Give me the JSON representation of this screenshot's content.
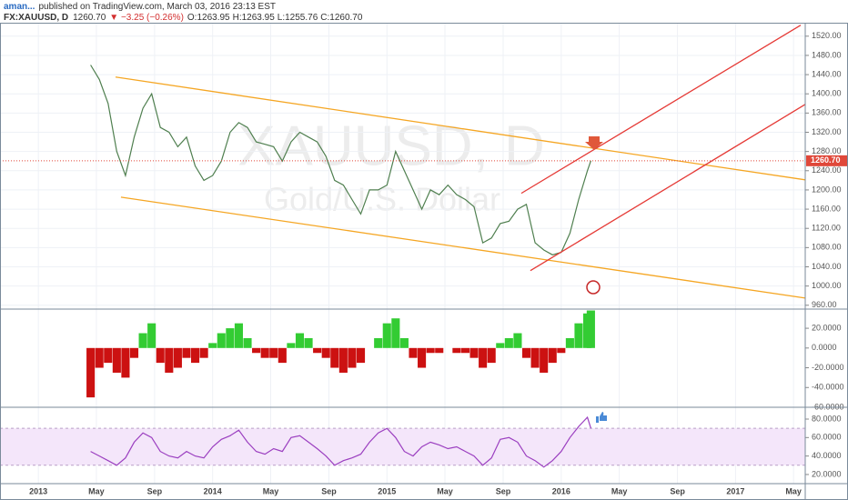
{
  "header": {
    "author": "aman...",
    "published": "published on TradingView.com, March 03, 2016 23:13 EST",
    "symbol": "FX:XAUUSD, D",
    "price": "1260.70",
    "change": "▼ −3.25 (−0.26%)",
    "open": "O:1263.95",
    "high": "H:1263.95",
    "low": "L:1255.76",
    "close": "C:1260.70"
  },
  "watermark": {
    "symbol": "XAUUSD, D",
    "name": "Gold/U.S. Dollar"
  },
  "chart_data": [
    {
      "type": "line",
      "color": "#4f7f4f",
      "x": [
        2013.3,
        2013.35,
        2013.4,
        2013.45,
        2013.5,
        2013.55,
        2013.6,
        2013.65,
        2013.7,
        2013.75,
        2013.8,
        2013.85,
        2013.9,
        2013.95,
        2014.0,
        2014.05,
        2014.1,
        2014.15,
        2014.2,
        2014.25,
        2014.3,
        2014.35,
        2014.4,
        2014.45,
        2014.5,
        2014.55,
        2014.6,
        2014.65,
        2014.7,
        2014.75,
        2014.8,
        2014.85,
        2014.9,
        2014.95,
        2015.0,
        2015.05,
        2015.1,
        2015.15,
        2015.2,
        2015.25,
        2015.3,
        2015.35,
        2015.4,
        2015.45,
        2015.5,
        2015.55,
        2015.6,
        2015.65,
        2015.7,
        2015.75,
        2015.8,
        2015.85,
        2015.9,
        2015.95,
        2016.0,
        2016.05,
        2016.1,
        2016.15,
        2016.17
      ],
      "values": [
        1460,
        1430,
        1380,
        1280,
        1230,
        1310,
        1370,
        1400,
        1330,
        1320,
        1290,
        1310,
        1250,
        1220,
        1230,
        1260,
        1320,
        1340,
        1330,
        1300,
        1295,
        1290,
        1260,
        1300,
        1320,
        1310,
        1300,
        1270,
        1220,
        1210,
        1180,
        1150,
        1200,
        1200,
        1210,
        1280,
        1240,
        1200,
        1160,
        1200,
        1190,
        1210,
        1190,
        1180,
        1165,
        1090,
        1100,
        1130,
        1135,
        1160,
        1170,
        1090,
        1075,
        1065,
        1070,
        1110,
        1180,
        1240,
        1260.7
      ],
      "xlim": [
        2012.78,
        2017.4
      ],
      "ylim": [
        952,
        1548
      ],
      "yticks": [
        {
          "value": 960,
          "label": "960.00"
        },
        {
          "value": 1000,
          "label": "1000.00"
        },
        {
          "value": 1040,
          "label": "1040.00"
        },
        {
          "value": 1080,
          "label": "1080.00"
        },
        {
          "value": 1120,
          "label": "1120.00"
        },
        {
          "value": 1160,
          "label": "1160.00"
        },
        {
          "value": 1200,
          "label": "1200.00"
        },
        {
          "value": 1240,
          "label": "1240.00"
        },
        {
          "value": 1280,
          "label": "1280.00"
        },
        {
          "value": 1320,
          "label": "1320.00"
        },
        {
          "value": 1360,
          "label": "1360.00"
        },
        {
          "value": 1400,
          "label": "1400.00"
        },
        {
          "value": 1440,
          "label": "1440.00"
        },
        {
          "value": 1480,
          "label": "1480.00"
        },
        {
          "value": 1520,
          "label": "1520.00"
        }
      ],
      "current_price": {
        "value": 1260.7,
        "label": "1260.70",
        "color": "#e0483a"
      },
      "trendlines": [
        {
          "color": "#f5a623",
          "x": [
            2013.443,
            2017.4
          ],
          "y": [
            1435,
            1221
          ]
        },
        {
          "color": "#f5a623",
          "x": [
            2013.474,
            2017.4
          ],
          "y": [
            1185,
            975
          ]
        },
        {
          "color": "#e53935",
          "x": [
            2015.771,
            2017.374
          ],
          "y": [
            1193,
            1543
          ]
        },
        {
          "color": "#e53935",
          "x": [
            2015.823,
            2017.4
          ],
          "y": [
            1032,
            1378
          ]
        }
      ],
      "grid": true
    },
    {
      "type": "bar",
      "up_color": "#33cc33",
      "down_color": "#cc1111",
      "x": [
        2013.3,
        2013.35,
        2013.4,
        2013.45,
        2013.5,
        2013.55,
        2013.6,
        2013.65,
        2013.7,
        2013.75,
        2013.8,
        2013.85,
        2013.9,
        2013.95,
        2014.0,
        2014.05,
        2014.1,
        2014.15,
        2014.2,
        2014.25,
        2014.3,
        2014.35,
        2014.4,
        2014.45,
        2014.5,
        2014.55,
        2014.6,
        2014.65,
        2014.7,
        2014.75,
        2014.8,
        2014.85,
        2014.9,
        2014.95,
        2015.0,
        2015.05,
        2015.1,
        2015.15,
        2015.2,
        2015.25,
        2015.3,
        2015.35,
        2015.4,
        2015.45,
        2015.5,
        2015.55,
        2015.6,
        2015.65,
        2015.7,
        2015.75,
        2015.8,
        2015.85,
        2015.9,
        2015.95,
        2016.0,
        2016.05,
        2016.1,
        2016.15,
        2016.17
      ],
      "values": [
        -50,
        -20,
        -15,
        -25,
        -30,
        -10,
        15,
        25,
        -15,
        -25,
        -20,
        -10,
        -15,
        -10,
        5,
        15,
        20,
        25,
        10,
        -5,
        -10,
        -10,
        -15,
        5,
        15,
        10,
        -5,
        -10,
        -20,
        -25,
        -20,
        -15,
        0,
        10,
        25,
        30,
        10,
        -10,
        -20,
        -5,
        -5,
        0,
        -5,
        -5,
        -10,
        -20,
        -15,
        5,
        10,
        15,
        -10,
        -20,
        -25,
        -15,
        -5,
        10,
        25,
        35,
        38
      ],
      "xlim": [
        2012.78,
        2017.4
      ],
      "ylim": [
        -60,
        39.4
      ],
      "yticks": [
        {
          "value": 20,
          "label": "20.0000"
        },
        {
          "value": 0,
          "label": "0.0000"
        },
        {
          "value": -20,
          "label": "-20.0000"
        },
        {
          "value": -40,
          "label": "-40.0000"
        },
        {
          "value": -60,
          "label": "-60.0000"
        }
      ]
    },
    {
      "type": "line",
      "color": "#9b3fc0",
      "x": [
        2013.3,
        2013.35,
        2013.4,
        2013.45,
        2013.5,
        2013.55,
        2013.6,
        2013.65,
        2013.7,
        2013.75,
        2013.8,
        2013.85,
        2013.9,
        2013.95,
        2014.0,
        2014.05,
        2014.1,
        2014.15,
        2014.2,
        2014.25,
        2014.3,
        2014.35,
        2014.4,
        2014.45,
        2014.5,
        2014.55,
        2014.6,
        2014.65,
        2014.7,
        2014.75,
        2014.8,
        2014.85,
        2014.9,
        2014.95,
        2015.0,
        2015.05,
        2015.1,
        2015.15,
        2015.2,
        2015.25,
        2015.3,
        2015.35,
        2015.4,
        2015.45,
        2015.5,
        2015.55,
        2015.6,
        2015.65,
        2015.7,
        2015.75,
        2015.8,
        2015.85,
        2015.9,
        2015.95,
        2016.0,
        2016.05,
        2016.1,
        2016.15,
        2016.17
      ],
      "values": [
        45,
        40,
        35,
        30,
        38,
        55,
        65,
        60,
        45,
        40,
        38,
        45,
        40,
        38,
        50,
        58,
        62,
        68,
        55,
        45,
        42,
        48,
        45,
        60,
        62,
        55,
        48,
        40,
        30,
        35,
        38,
        42,
        55,
        65,
        70,
        60,
        45,
        40,
        50,
        55,
        52,
        48,
        50,
        45,
        40,
        30,
        38,
        58,
        60,
        55,
        40,
        35,
        28,
        35,
        45,
        60,
        72,
        82,
        70
      ],
      "xlim": [
        2012.78,
        2017.4
      ],
      "ylim": [
        10.1,
        92.8
      ],
      "yticks": [
        {
          "value": 80,
          "label": "80.0000"
        },
        {
          "value": 60,
          "label": "60.0000"
        },
        {
          "value": 40,
          "label": "40.0000"
        },
        {
          "value": 20,
          "label": "20.0000"
        }
      ],
      "band": [
        30,
        70
      ],
      "band_color": "#f4e6fa",
      "xticks": [
        {
          "value": 2013,
          "label": "2013"
        },
        {
          "value": 2013.333,
          "label": "May"
        },
        {
          "value": 2013.667,
          "label": "Sep"
        },
        {
          "value": 2014,
          "label": "2014"
        },
        {
          "value": 2014.333,
          "label": "May"
        },
        {
          "value": 2014.667,
          "label": "Sep"
        },
        {
          "value": 2015,
          "label": "2015"
        },
        {
          "value": 2015.333,
          "label": "May"
        },
        {
          "value": 2015.667,
          "label": "Sep"
        },
        {
          "value": 2016,
          "label": "2016"
        },
        {
          "value": 2016.333,
          "label": "May"
        },
        {
          "value": 2016.667,
          "label": "Sep"
        },
        {
          "value": 2017,
          "label": "2017"
        },
        {
          "value": 2017.333,
          "label": "May"
        }
      ]
    }
  ]
}
